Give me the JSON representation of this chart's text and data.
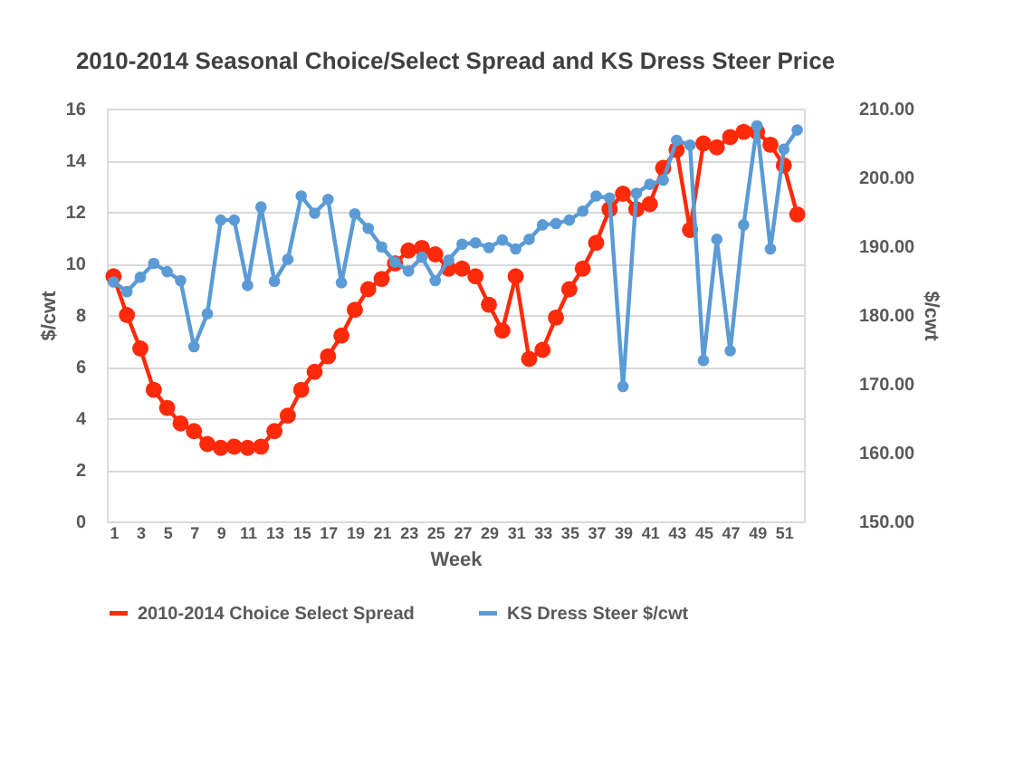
{
  "chart_data": {
    "type": "line",
    "title": "2010-2014 Seasonal Choice/Select Spread and KS Dress Steer Price",
    "xlabel": "Week",
    "ylabel": "$/cwt",
    "y2label": "$/cwt",
    "x": [
      1,
      2,
      3,
      4,
      5,
      6,
      7,
      8,
      9,
      10,
      11,
      12,
      13,
      14,
      15,
      16,
      17,
      18,
      19,
      20,
      21,
      22,
      23,
      24,
      25,
      26,
      27,
      28,
      29,
      30,
      31,
      32,
      33,
      34,
      35,
      36,
      37,
      38,
      39,
      40,
      41,
      42,
      43,
      44,
      45,
      46,
      47,
      48,
      49,
      50,
      51,
      52
    ],
    "xlim": [
      0.5,
      52.5
    ],
    "xticks": [
      1,
      3,
      5,
      7,
      9,
      11,
      13,
      15,
      17,
      19,
      21,
      23,
      25,
      27,
      29,
      31,
      33,
      35,
      37,
      39,
      41,
      43,
      45,
      47,
      49,
      51
    ],
    "series": [
      {
        "name": "2010-2014 Choice Select Spread",
        "color": "#ff2a0a",
        "values": [
          9.5,
          8.0,
          6.7,
          5.1,
          4.4,
          3.8,
          3.5,
          3.0,
          2.85,
          2.9,
          2.85,
          2.9,
          3.5,
          4.1,
          5.1,
          5.8,
          6.4,
          7.2,
          8.2,
          9.0,
          9.4,
          10.0,
          10.5,
          10.6,
          10.35,
          9.8,
          9.8,
          9.5,
          8.4,
          7.4,
          9.5,
          6.3,
          6.65,
          7.9,
          9.0,
          9.8,
          10.8,
          12.1,
          12.7,
          12.1,
          12.3,
          13.7,
          14.4,
          11.3,
          14.65,
          14.5,
          14.9,
          15.1,
          15.1,
          14.6,
          13.8,
          11.9
        ]
      },
      {
        "name": "KS Dress Steer $/cwt",
        "color": "#5b9bd5",
        "axis": "y2",
        "values": [
          184.8,
          183.4,
          185.5,
          187.5,
          186.3,
          185.0,
          175.4,
          180.2,
          193.8,
          193.8,
          184.3,
          195.7,
          184.9,
          188.1,
          197.3,
          194.8,
          196.8,
          184.7,
          194.7,
          192.6,
          189.9,
          187.7,
          186.4,
          188.4,
          185.0,
          188.0,
          190.3,
          190.5,
          189.8,
          190.9,
          189.6,
          191.0,
          193.1,
          193.3,
          193.8,
          195.1,
          197.3,
          197.0,
          169.6,
          197.7,
          199.0,
          199.6,
          205.4,
          204.7,
          173.4,
          191.0,
          174.8,
          193.1,
          207.5,
          189.6,
          204.1,
          206.9
        ]
      }
    ],
    "ylim": [
      0,
      16
    ],
    "yticks": [
      0,
      2,
      4,
      6,
      8,
      10,
      12,
      14,
      16
    ],
    "y2lim": [
      150,
      210
    ],
    "y2ticks": [
      {
        "value": 150,
        "label": "150.00"
      },
      {
        "value": 160,
        "label": "160.00"
      },
      {
        "value": 170,
        "label": "170.00"
      },
      {
        "value": 180,
        "label": "180.00"
      },
      {
        "value": 190,
        "label": "190.00"
      },
      {
        "value": 200,
        "label": "200.00"
      },
      {
        "value": 210,
        "label": "210.00"
      }
    ],
    "grid": "y",
    "legend": "bottom",
    "marker": "circle",
    "line_style": "solid"
  }
}
